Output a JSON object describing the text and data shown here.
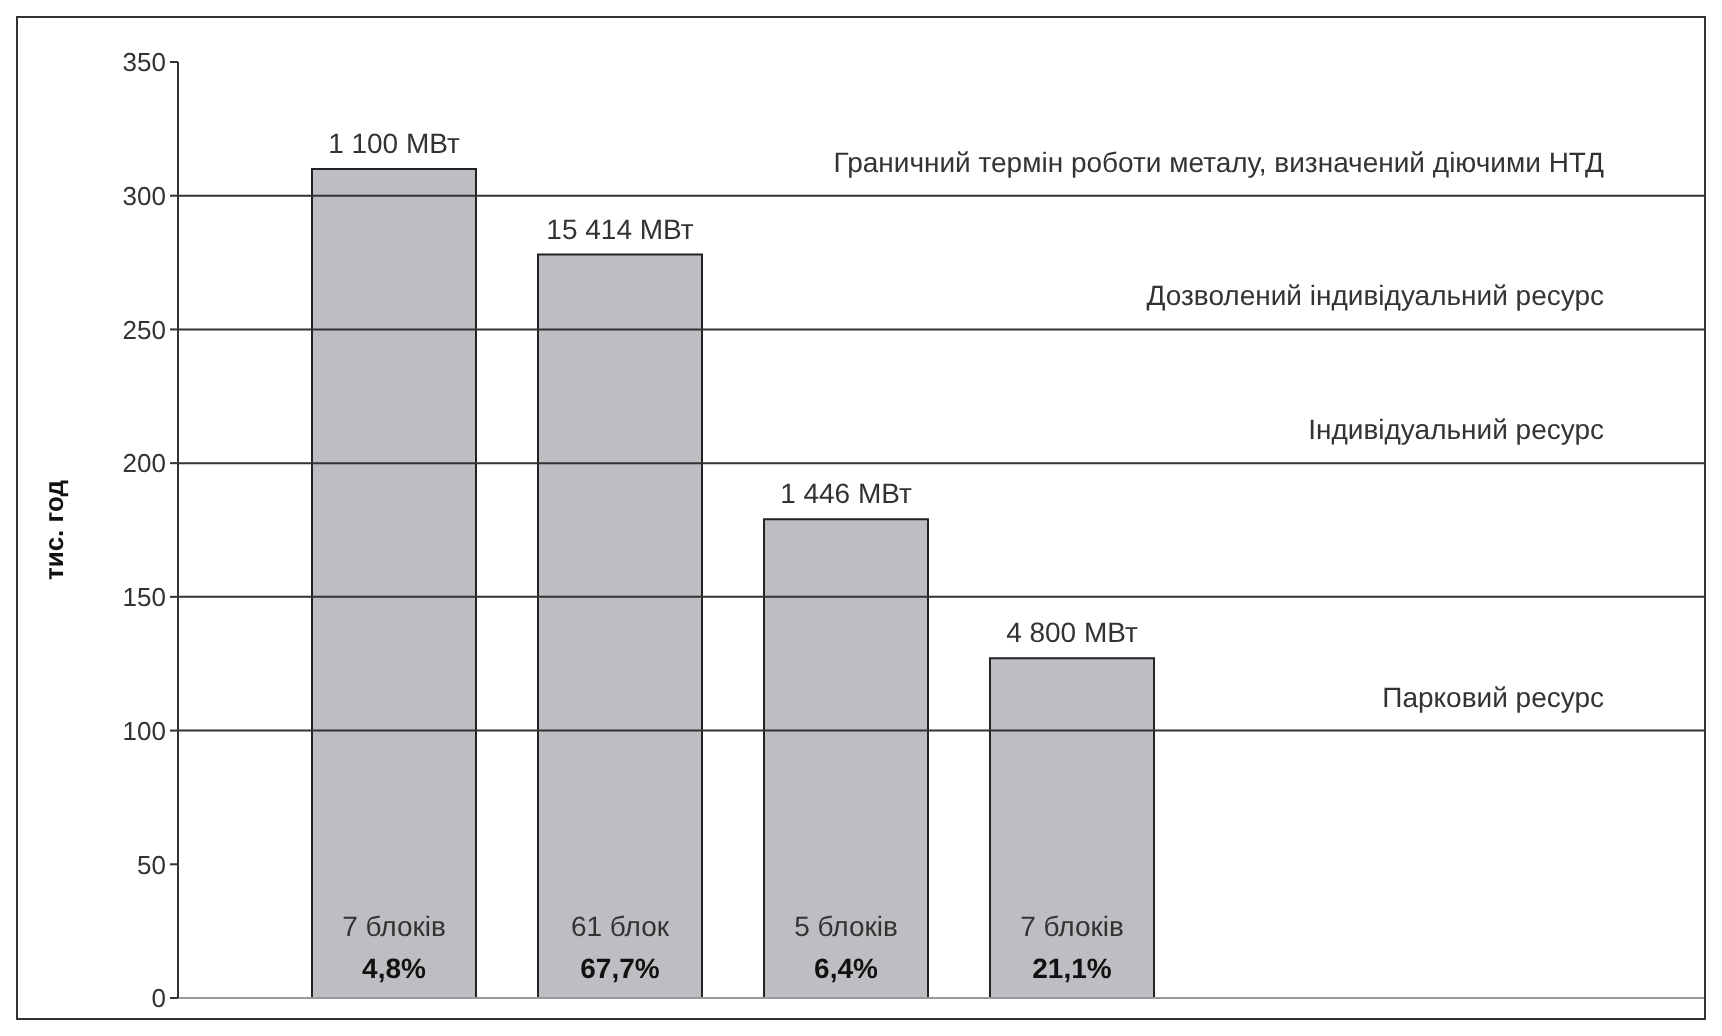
{
  "chart_data": {
    "type": "bar",
    "ylabel": "тис. год",
    "categories": [
      null,
      null,
      null,
      null
    ],
    "values": [
      310,
      278,
      179,
      127
    ],
    "color": "#bdbec2",
    "ylim": [
      0,
      350
    ],
    "yticks": [
      0,
      50,
      100,
      150,
      200,
      250,
      300,
      350
    ],
    "tick_labels": "y",
    "grid": false,
    "legend": false,
    "ref_lines": [
      {
        "axis": "y",
        "value": 300,
        "label": "Граничний термін роботи металу, визначений діючими НТД",
        "color": "#333333"
      },
      {
        "axis": "y",
        "value": 250,
        "label": "Дозволений індивідуальний ресурс",
        "color": "#333333"
      },
      {
        "axis": "y",
        "value": 200,
        "label": "Індивідуальний ресурс",
        "color": "#333333"
      },
      {
        "axis": "y",
        "value": 150,
        "label": null,
        "color": "#333333"
      },
      {
        "axis": "y",
        "value": 100,
        "label": "Парковий ресурс",
        "color": "#333333"
      }
    ],
    "annotations": [
      "1 100 МВт",
      "7 блоків",
      "4,8%",
      "15 414 МВт",
      "61 блок",
      "67,7%",
      "1 446 МВт",
      "5 блоків",
      "6,4%",
      "4 800 МВт",
      "7 блоків",
      "21,1%"
    ]
  }
}
